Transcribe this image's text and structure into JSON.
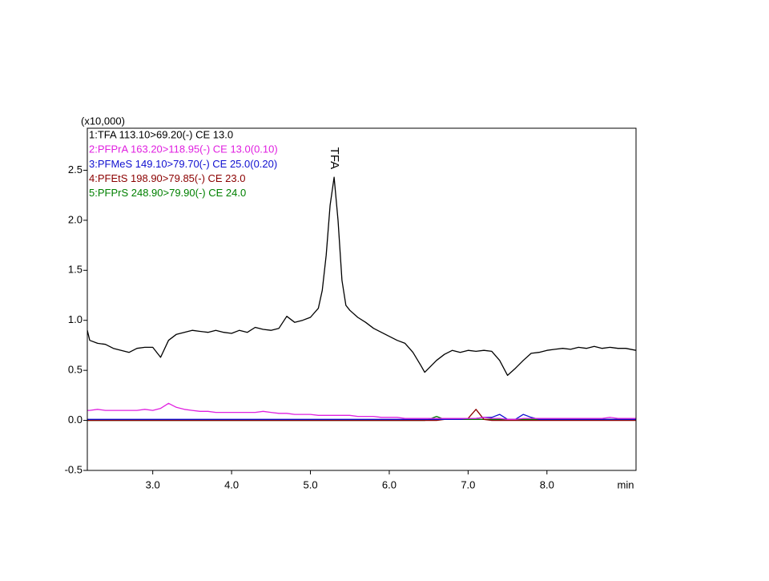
{
  "chart_data": {
    "type": "line",
    "y_unit_label": "(x10,000)",
    "xlabel": "min",
    "annotation": "TFA",
    "xlim": [
      2.17,
      9.13
    ],
    "ylim": [
      -0.5,
      2.92
    ],
    "xticks": [
      {
        "value": 3,
        "label": "3.0"
      },
      {
        "value": 4,
        "label": "4.0"
      },
      {
        "value": 5,
        "label": "5.0"
      },
      {
        "value": 6,
        "label": "6.0"
      },
      {
        "value": 7,
        "label": "7.0"
      },
      {
        "value": 8,
        "label": "8.0"
      }
    ],
    "yticks": [
      {
        "value": -0.5,
        "label": "-0.5"
      },
      {
        "value": 0,
        "label": "0.0"
      },
      0.5,
      {
        "value": 1,
        "label": "1.0"
      },
      1.5,
      {
        "value": 2,
        "label": "2.0"
      },
      2.5
    ],
    "x": [
      2.17,
      2.2,
      2.3,
      2.4,
      2.5,
      2.6,
      2.7,
      2.8,
      2.9,
      3.0,
      3.1,
      3.2,
      3.3,
      3.4,
      3.5,
      3.6,
      3.7,
      3.8,
      3.9,
      4.0,
      4.1,
      4.2,
      4.3,
      4.4,
      4.5,
      4.6,
      4.7,
      4.8,
      4.9,
      5.0,
      5.1,
      5.15,
      5.2,
      5.25,
      5.3,
      5.35,
      5.4,
      5.45,
      5.5,
      5.6,
      5.7,
      5.8,
      5.9,
      6.0,
      6.1,
      6.2,
      6.3,
      6.4,
      6.45,
      6.5,
      6.6,
      6.7,
      6.8,
      6.9,
      7.0,
      7.1,
      7.2,
      7.3,
      7.4,
      7.5,
      7.6,
      7.7,
      7.8,
      7.9,
      8.0,
      8.1,
      8.2,
      8.3,
      8.4,
      8.5,
      8.6,
      8.7,
      8.8,
      8.9,
      9.0,
      9.13
    ],
    "series": [
      {
        "name": "1:TFA 113.10>69.20(-) CE 13.0",
        "color": "#000000",
        "values": [
          0.9,
          0.8,
          0.77,
          0.76,
          0.72,
          0.7,
          0.68,
          0.72,
          0.73,
          0.73,
          0.63,
          0.8,
          0.86,
          0.88,
          0.9,
          0.89,
          0.88,
          0.9,
          0.88,
          0.87,
          0.9,
          0.88,
          0.93,
          0.91,
          0.9,
          0.92,
          1.04,
          0.98,
          1.0,
          1.03,
          1.12,
          1.3,
          1.65,
          2.15,
          2.43,
          2.0,
          1.4,
          1.15,
          1.1,
          1.03,
          0.98,
          0.92,
          0.88,
          0.84,
          0.8,
          0.77,
          0.68,
          0.55,
          0.48,
          0.52,
          0.6,
          0.66,
          0.7,
          0.68,
          0.7,
          0.69,
          0.7,
          0.69,
          0.6,
          0.45,
          0.52,
          0.6,
          0.67,
          0.68,
          0.7,
          0.71,
          0.72,
          0.71,
          0.73,
          0.72,
          0.74,
          0.72,
          0.73,
          0.72,
          0.72,
          0.7
        ]
      },
      {
        "name": "2:PFPrA 163.20>118.95(-) CE 13.0(0.10)",
        "color": "#e020e0",
        "values": [
          0.1,
          0.1,
          0.11,
          0.1,
          0.1,
          0.1,
          0.1,
          0.1,
          0.11,
          0.1,
          0.12,
          0.17,
          0.13,
          0.11,
          0.1,
          0.09,
          0.09,
          0.08,
          0.08,
          0.08,
          0.08,
          0.08,
          0.08,
          0.09,
          0.08,
          0.07,
          0.07,
          0.06,
          0.06,
          0.06,
          0.05,
          0.05,
          0.05,
          0.05,
          0.05,
          0.05,
          0.05,
          0.05,
          0.05,
          0.04,
          0.04,
          0.04,
          0.03,
          0.03,
          0.03,
          0.02,
          0.02,
          0.02,
          0.02,
          0.02,
          0.02,
          0.02,
          0.02,
          0.02,
          0.02,
          0.02,
          0.03,
          0.02,
          0.02,
          0.01,
          0.01,
          0.02,
          0.02,
          0.02,
          0.02,
          0.02,
          0.02,
          0.02,
          0.02,
          0.02,
          0.02,
          0.02,
          0.03,
          0.02,
          0.02,
          0.02
        ]
      },
      {
        "name": "3:PFMeS 149.10>79.70(-) CE 25.0(0.20)",
        "color": "#1010d0",
        "values": [
          0.01,
          0.01,
          0.01,
          0.01,
          0.01,
          0.01,
          0.01,
          0.01,
          0.01,
          0.01,
          0.01,
          0.01,
          0.01,
          0.01,
          0.01,
          0.01,
          0.01,
          0.01,
          0.01,
          0.01,
          0.01,
          0.01,
          0.01,
          0.01,
          0.01,
          0.01,
          0.01,
          0.01,
          0.01,
          0.01,
          0.01,
          0.01,
          0.01,
          0.01,
          0.01,
          0.01,
          0.01,
          0.01,
          0.01,
          0.01,
          0.01,
          0.01,
          0.01,
          0.01,
          0.01,
          0.01,
          0.01,
          0.01,
          0.01,
          0.01,
          0.01,
          0.01,
          0.01,
          0.01,
          0.02,
          0.02,
          0.03,
          0.03,
          0.06,
          0.01,
          0.01,
          0.06,
          0.03,
          0.01,
          0.01,
          0.01,
          0.01,
          0.01,
          0.01,
          0.01,
          0.01,
          0.01,
          0.01,
          0.01,
          0.01,
          0.01
        ]
      },
      {
        "name": "4:PFEtS 198.90>79.85(-) CE 23.0",
        "color": "#8b0000",
        "values": [
          0,
          0,
          0,
          0,
          0,
          0,
          0,
          0,
          0,
          0,
          0,
          0,
          0,
          0,
          0,
          0,
          0,
          0,
          0,
          0,
          0,
          0,
          0,
          0,
          0,
          0,
          0,
          0,
          0,
          0,
          0,
          0,
          0,
          0,
          0,
          0,
          0,
          0,
          0,
          0,
          0,
          0,
          0,
          0,
          0,
          0,
          0,
          0,
          0,
          0,
          0,
          0.01,
          0.01,
          0.01,
          0.02,
          0.11,
          0.01,
          0,
          0,
          0,
          0,
          0,
          0,
          0,
          0,
          0,
          0,
          0,
          0,
          0,
          0,
          0,
          0,
          0,
          0,
          0
        ]
      },
      {
        "name": "5:PFPrS 248.90>79.90(-) CE 24.0",
        "color": "#008000",
        "values": [
          0,
          0,
          0,
          0,
          0,
          0,
          0,
          0,
          0,
          0,
          0,
          0,
          0,
          0,
          0,
          0,
          0,
          0,
          0,
          0,
          0,
          0,
          0,
          0,
          0,
          0,
          0,
          0,
          0,
          0,
          0,
          0,
          0,
          0,
          0,
          0,
          0,
          0,
          0,
          0,
          0,
          0,
          0,
          0,
          0,
          0,
          0,
          0,
          0,
          0.01,
          0.04,
          0.01,
          0.01,
          0.01,
          0.01,
          0.01,
          0.01,
          0.01,
          0.01,
          0.01,
          0.01,
          0.01,
          0.01,
          0.01,
          0.01,
          0.01,
          0.01,
          0.01,
          0.01,
          0.01,
          0.01,
          0.01,
          0.01,
          0.01,
          0.01,
          0.01
        ]
      }
    ]
  }
}
